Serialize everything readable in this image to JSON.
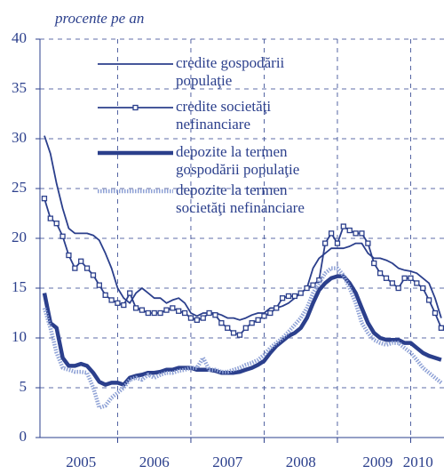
{
  "chart_data": {
    "type": "line",
    "subtitle": "procente pe an",
    "x": [
      2005,
      2005.083,
      2005.167,
      2005.25,
      2005.333,
      2005.417,
      2005.5,
      2005.583,
      2005.667,
      2005.75,
      2005.833,
      2005.917,
      2006,
      2006.083,
      2006.167,
      2006.25,
      2006.333,
      2006.417,
      2006.5,
      2006.583,
      2006.667,
      2006.75,
      2006.833,
      2006.917,
      2007,
      2007.083,
      2007.167,
      2007.25,
      2007.333,
      2007.417,
      2007.5,
      2007.583,
      2007.667,
      2007.75,
      2007.833,
      2007.917,
      2008,
      2008.083,
      2008.167,
      2008.25,
      2008.333,
      2008.417,
      2008.5,
      2008.583,
      2008.667,
      2008.75,
      2008.833,
      2008.917,
      2009,
      2009.083,
      2009.167,
      2009.25,
      2009.333,
      2009.417,
      2009.5,
      2009.583,
      2009.667,
      2009.75,
      2009.833,
      2009.917,
      2010,
      2010.083,
      2010.167,
      2010.25,
      2010.333,
      2010.417
    ],
    "series": [
      {
        "name": "credite gospodării populaţie",
        "color": "#2b3f8c",
        "width": 1.8,
        "marker": "none",
        "style": "solid",
        "values": [
          30.3,
          28.5,
          25.5,
          23,
          21,
          20.5,
          20.5,
          20.5,
          20.3,
          19.8,
          18.5,
          17,
          15,
          14,
          13.5,
          14.5,
          15,
          14.5,
          14,
          14,
          13.5,
          13.8,
          14,
          13.5,
          12.5,
          12.2,
          12.5,
          12.5,
          12.5,
          12.3,
          12,
          12,
          11.8,
          12,
          12.3,
          12.5,
          12.5,
          13,
          13,
          13.2,
          13.5,
          14,
          14.5,
          15,
          17,
          18,
          18.5,
          19,
          19,
          19,
          19.2,
          19.5,
          19.5,
          18.5,
          18,
          18,
          17.8,
          17.5,
          17,
          16.8,
          16.7,
          16.5,
          16,
          15.5,
          14,
          12
        ]
      },
      {
        "name": "credite societăţi nefinanciare",
        "color": "#2b3f8c",
        "width": 1.8,
        "marker": "square",
        "style": "solid",
        "values": [
          24,
          22,
          21.5,
          20.2,
          18.3,
          17,
          17.7,
          17,
          16.3,
          15.3,
          14.3,
          13.8,
          13.5,
          13.3,
          14.5,
          13,
          12.8,
          12.5,
          12.5,
          12.5,
          12.8,
          13,
          12.7,
          12.5,
          12,
          11.8,
          12,
          12.5,
          12.3,
          11.5,
          11,
          10.5,
          10.3,
          11,
          11.5,
          11.8,
          12.2,
          12.5,
          13,
          14,
          14.2,
          14.2,
          14.5,
          15,
          15.3,
          15.8,
          19.5,
          20.5,
          19.5,
          21.2,
          20.8,
          20.5,
          20.5,
          19.5,
          17.5,
          16.5,
          16,
          15.5,
          15,
          16,
          16,
          15.5,
          15,
          13.8,
          12.5,
          11
        ]
      },
      {
        "name": "depozite la termen gospodării populaţie",
        "color": "#2b3f8c",
        "width": 4.5,
        "marker": "none",
        "style": "solid",
        "values": [
          14.5,
          11.5,
          11,
          8,
          7.2,
          7.2,
          7.4,
          7.2,
          6.5,
          5.6,
          5.3,
          5.5,
          5.5,
          5.3,
          6,
          6.2,
          6.3,
          6.5,
          6.5,
          6.6,
          6.8,
          6.8,
          7,
          7,
          7,
          6.8,
          6.8,
          6.8,
          6.7,
          6.5,
          6.5,
          6.5,
          6.6,
          6.8,
          7,
          7.3,
          7.7,
          8.5,
          9.2,
          9.7,
          10.2,
          10.5,
          11,
          12,
          13.5,
          14.8,
          15.5,
          16,
          16.2,
          16.2,
          15.5,
          14.5,
          13,
          11.5,
          10.5,
          10,
          9.8,
          9.8,
          9.8,
          9.5,
          9.5,
          9,
          8.5,
          8.2,
          8,
          7.8
        ]
      },
      {
        "name": "depozite la termen societăţi nefinanciare",
        "color": "#8fa2d6",
        "width": 4.5,
        "marker": "none",
        "style": "dotted",
        "values": [
          13,
          11,
          8.5,
          7,
          6.8,
          6.6,
          6.6,
          6.5,
          5,
          3,
          3.2,
          4,
          4.5,
          5,
          5.8,
          6,
          5.8,
          6.3,
          6,
          6.3,
          6.5,
          6.5,
          6.7,
          6.8,
          7,
          7,
          8,
          6.8,
          6.8,
          6.6,
          6.6,
          6.8,
          7,
          7.3,
          7.5,
          7.8,
          8.3,
          9,
          9.5,
          10,
          10.6,
          11.3,
          12,
          13,
          14.5,
          15.5,
          16.5,
          17,
          17,
          16.3,
          15,
          13.5,
          11.5,
          10.5,
          9.8,
          9.5,
          9.3,
          9.5,
          9.5,
          9,
          8.5,
          7.8,
          7,
          6.5,
          6,
          5.5
        ]
      }
    ],
    "xlim": [
      2004.94,
      2010.455
    ],
    "ylim": [
      0,
      40
    ],
    "yticks": [
      0,
      5,
      10,
      15,
      20,
      25,
      30,
      35,
      40
    ],
    "xticks": [
      {
        "value": 2005.5,
        "label": "2005"
      },
      {
        "value": 2006.5,
        "label": "2006"
      },
      {
        "value": 2007.5,
        "label": "2007"
      },
      {
        "value": 2008.5,
        "label": "2008"
      },
      {
        "value": 2009.55,
        "label": "2009"
      },
      {
        "value": 2010.1,
        "label": "2010"
      }
    ],
    "xgrid": [
      2006,
      2007,
      2008,
      2009,
      2010
    ],
    "grid": true,
    "legend": "upper center"
  }
}
